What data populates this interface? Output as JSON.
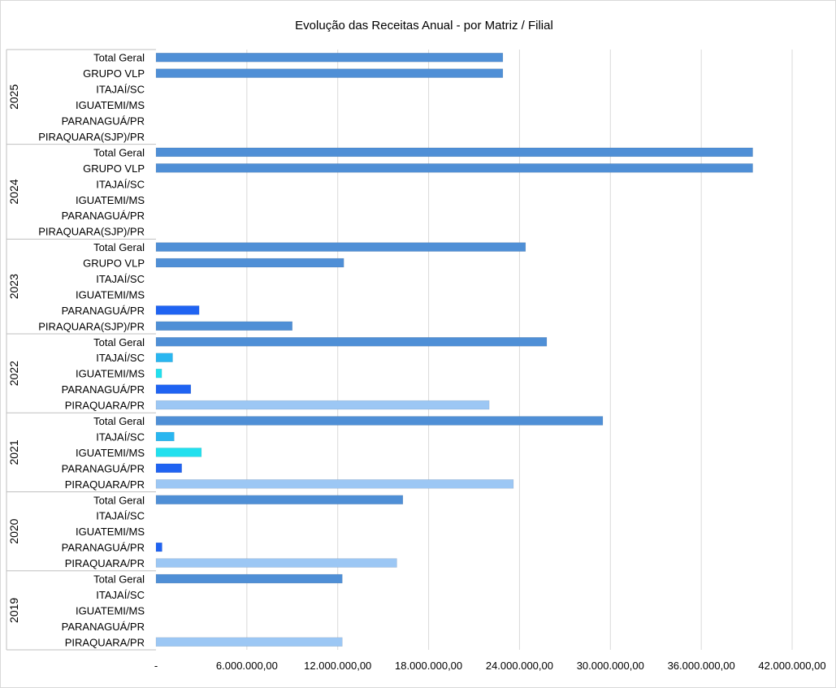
{
  "chart_data": {
    "type": "bar",
    "orientation": "horizontal",
    "title": "Evolução das Receitas Anual - por Matriz / Filial",
    "xlabel": "",
    "ylabel": "",
    "xlim": [
      0,
      42000000
    ],
    "x_ticks": [
      {
        "value": 0,
        "label": "-"
      },
      {
        "value": 6000000,
        "label": "6.000.000,00"
      },
      {
        "value": 12000000,
        "label": "12.000.000,00"
      },
      {
        "value": 18000000,
        "label": "18.000.000,00"
      },
      {
        "value": 24000000,
        "label": "24.000.000,00"
      },
      {
        "value": 30000000,
        "label": "30.000.000,00"
      },
      {
        "value": 36000000,
        "label": "36.000.000,00"
      },
      {
        "value": 42000000,
        "label": "42.000.000,00"
      }
    ],
    "grid": "vertical gridlines",
    "legend": "none",
    "colors": {
      "Total Geral": "#4f8fd6",
      "GRUPO VLP": "#4f8fd6",
      "ITAJAÍ/SC": "#29b6f0",
      "IGUATEMI/MS": "#21e0ee",
      "PARANAGUÁ/PR": "#1f63f2",
      "PIRAQUARA/PR": "#9cc7f4",
      "PIRAQUARA(SJP)/PR": "#4f8fd6",
      "grid": "#d9d9d9",
      "separator": "#bfbfbf"
    },
    "groups": [
      {
        "year": "2025",
        "items": [
          {
            "label": "Total Geral",
            "value": 22900000
          },
          {
            "label": "GRUPO VLP",
            "value": 22900000
          },
          {
            "label": "ITAJAÍ/SC",
            "value": 0
          },
          {
            "label": "IGUATEMI/MS",
            "value": 0
          },
          {
            "label": "PARANAGUÁ/PR",
            "value": 0
          },
          {
            "label": "PIRAQUARA(SJP)/PR",
            "value": 0
          }
        ]
      },
      {
        "year": "2024",
        "items": [
          {
            "label": "Total Geral",
            "value": 39400000
          },
          {
            "label": "GRUPO VLP",
            "value": 39400000
          },
          {
            "label": "ITAJAÍ/SC",
            "value": 0
          },
          {
            "label": "IGUATEMI/MS",
            "value": 0
          },
          {
            "label": "PARANAGUÁ/PR",
            "value": 0
          },
          {
            "label": "PIRAQUARA(SJP)/PR",
            "value": 0
          }
        ]
      },
      {
        "year": "2023",
        "items": [
          {
            "label": "Total Geral",
            "value": 24400000
          },
          {
            "label": "GRUPO VLP",
            "value": 12400000
          },
          {
            "label": "ITAJAÍ/SC",
            "value": 0
          },
          {
            "label": "IGUATEMI/MS",
            "value": 0
          },
          {
            "label": "PARANAGUÁ/PR",
            "value": 2850000
          },
          {
            "label": "PIRAQUARA(SJP)/PR",
            "value": 9000000
          }
        ]
      },
      {
        "year": "2022",
        "items": [
          {
            "label": "Total Geral",
            "value": 25800000
          },
          {
            "label": "ITAJAÍ/SC",
            "value": 1100000
          },
          {
            "label": "IGUATEMI/MS",
            "value": 380000
          },
          {
            "label": "PARANAGUÁ/PR",
            "value": 2300000
          },
          {
            "label": "PIRAQUARA/PR",
            "value": 22000000
          }
        ]
      },
      {
        "year": "2021",
        "items": [
          {
            "label": "Total Geral",
            "value": 29500000
          },
          {
            "label": "ITAJAÍ/SC",
            "value": 1200000
          },
          {
            "label": "IGUATEMI/MS",
            "value": 3000000
          },
          {
            "label": "PARANAGUÁ/PR",
            "value": 1700000
          },
          {
            "label": "PIRAQUARA/PR",
            "value": 23600000
          }
        ]
      },
      {
        "year": "2020",
        "items": [
          {
            "label": "Total Geral",
            "value": 16300000
          },
          {
            "label": "ITAJAÍ/SC",
            "value": 0
          },
          {
            "label": "IGUATEMI/MS",
            "value": 0
          },
          {
            "label": "PARANAGUÁ/PR",
            "value": 400000
          },
          {
            "label": "PIRAQUARA/PR",
            "value": 15900000
          }
        ]
      },
      {
        "year": "2019",
        "items": [
          {
            "label": "Total Geral",
            "value": 12300000
          },
          {
            "label": "ITAJAÍ/SC",
            "value": 0
          },
          {
            "label": "IGUATEMI/MS",
            "value": 0
          },
          {
            "label": "PARANAGUÁ/PR",
            "value": 0
          },
          {
            "label": "PIRAQUARA/PR",
            "value": 12300000
          }
        ]
      }
    ]
  }
}
